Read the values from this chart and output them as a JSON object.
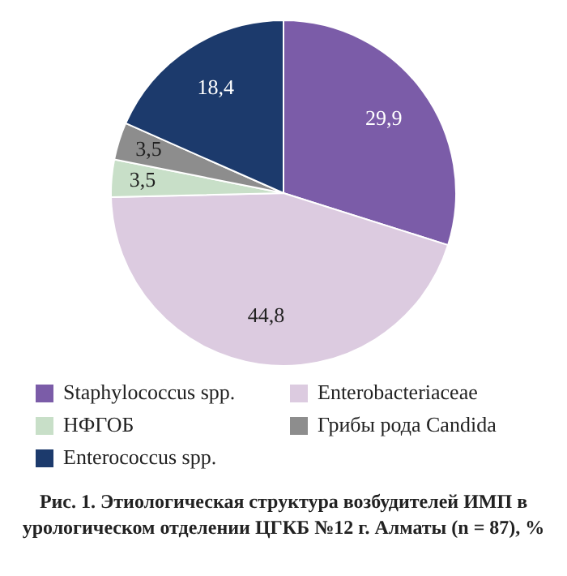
{
  "chart_data": {
    "type": "pie",
    "title": "Рис. 1. Этиологическая структура возбудителей ИМП в урологическом отделении ЦГКБ №12 г. Алматы (n = 87), %",
    "categories": [
      "Staphylococcus spp.",
      "Enterobacteriaceae",
      "НФГОБ",
      "Грибы рода Candida",
      "Enterococcus spp."
    ],
    "values": [
      29.9,
      44.8,
      3.5,
      3.5,
      18.4
    ],
    "value_labels": [
      "29,9",
      "44,8",
      "3,5",
      "3,5",
      "18,4"
    ],
    "colors": [
      "#7b5ca8",
      "#dccbe0",
      "#c8dfc8",
      "#8d8d8d",
      "#1c3a6c"
    ],
    "legend": "bottom"
  }
}
